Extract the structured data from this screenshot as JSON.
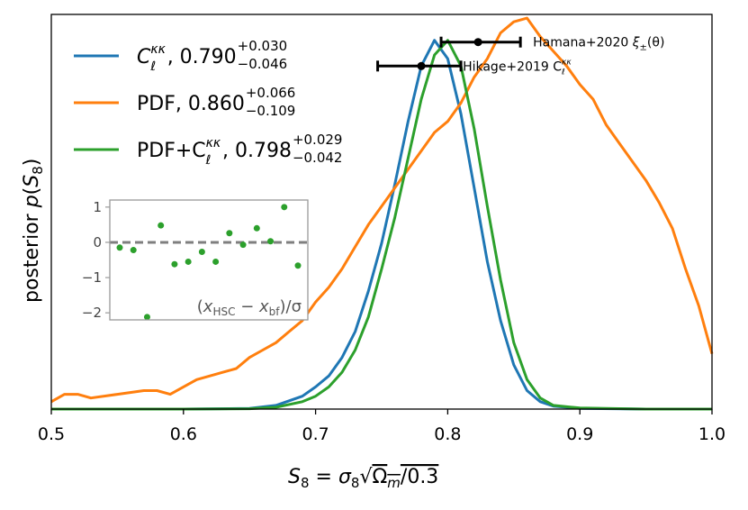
{
  "chart_data": {
    "type": "line",
    "title": "",
    "xlabel": "S_8 = σ_8 √(Ω_m/0.3)",
    "ylabel": "posterior p(S_8)",
    "xlim": [
      0.5,
      1.0
    ],
    "ylim": [
      0,
      1.07
    ],
    "xticks": [
      "0.5",
      "0.6",
      "0.7",
      "0.8",
      "0.9",
      "1.0"
    ],
    "legend_position": "upper-left",
    "series": [
      {
        "name": "Cₗ^κκ",
        "color": "#1f77b4",
        "legend": {
          "lead": "C",
          "sub": "ℓ",
          "sup": "κκ",
          "value": ", 0.790",
          "plus": "+0.030",
          "minus": "−0.046"
        },
        "x": [
          0.5,
          0.6,
          0.65,
          0.67,
          0.69,
          0.7,
          0.71,
          0.72,
          0.73,
          0.74,
          0.75,
          0.76,
          0.77,
          0.78,
          0.79,
          0.8,
          0.81,
          0.82,
          0.83,
          0.84,
          0.85,
          0.86,
          0.87,
          0.88,
          0.9,
          0.95,
          1.0
        ],
        "y": [
          0,
          0,
          0.002,
          0.01,
          0.035,
          0.06,
          0.09,
          0.14,
          0.21,
          0.32,
          0.45,
          0.61,
          0.78,
          0.93,
          1.0,
          0.95,
          0.8,
          0.6,
          0.4,
          0.24,
          0.12,
          0.05,
          0.02,
          0.008,
          0.002,
          0,
          0
        ]
      },
      {
        "name": "PDF",
        "color": "#ff7f0e",
        "legend": {
          "lead": "PDF",
          "value": ", 0.860",
          "plus": "+0.066",
          "minus": "−0.109"
        },
        "x": [
          0.5,
          0.51,
          0.52,
          0.53,
          0.55,
          0.57,
          0.58,
          0.59,
          0.6,
          0.61,
          0.62,
          0.63,
          0.64,
          0.65,
          0.66,
          0.67,
          0.68,
          0.69,
          0.7,
          0.71,
          0.72,
          0.73,
          0.74,
          0.75,
          0.76,
          0.77,
          0.78,
          0.79,
          0.8,
          0.81,
          0.82,
          0.83,
          0.84,
          0.85,
          0.86,
          0.87,
          0.88,
          0.89,
          0.9,
          0.91,
          0.92,
          0.93,
          0.94,
          0.95,
          0.96,
          0.97,
          0.98,
          0.99,
          1.0
        ],
        "y": [
          0.02,
          0.04,
          0.04,
          0.03,
          0.04,
          0.05,
          0.05,
          0.04,
          0.06,
          0.08,
          0.09,
          0.1,
          0.11,
          0.14,
          0.16,
          0.18,
          0.21,
          0.24,
          0.29,
          0.33,
          0.38,
          0.44,
          0.5,
          0.55,
          0.6,
          0.65,
          0.7,
          0.75,
          0.78,
          0.83,
          0.9,
          0.95,
          1.02,
          1.05,
          1.06,
          1.01,
          0.97,
          0.93,
          0.88,
          0.84,
          0.77,
          0.72,
          0.67,
          0.62,
          0.56,
          0.49,
          0.38,
          0.28,
          0.15
        ]
      },
      {
        "name": "PDF+Cₗ^κκ",
        "color": "#2ca02c",
        "legend": {
          "lead": "PDF+C",
          "sub": "ℓ",
          "sup": "κκ",
          "value": ", 0.798",
          "plus": "+0.029",
          "minus": "−0.042"
        },
        "x": [
          0.5,
          0.6,
          0.65,
          0.67,
          0.69,
          0.7,
          0.71,
          0.72,
          0.73,
          0.74,
          0.75,
          0.76,
          0.77,
          0.78,
          0.79,
          0.8,
          0.81,
          0.82,
          0.83,
          0.84,
          0.85,
          0.86,
          0.87,
          0.88,
          0.9,
          0.95,
          1.0
        ],
        "y": [
          0,
          0,
          0.001,
          0.005,
          0.02,
          0.035,
          0.06,
          0.1,
          0.16,
          0.25,
          0.38,
          0.52,
          0.68,
          0.84,
          0.96,
          1.0,
          0.93,
          0.76,
          0.55,
          0.35,
          0.18,
          0.08,
          0.03,
          0.01,
          0.003,
          0,
          0
        ]
      }
    ],
    "reference_points": [
      {
        "label": "Hamana+2020 ξ±(θ)",
        "text": "Hamana+2020 ",
        "symbol": "ξ",
        "sub": "±",
        "tail": "(θ)",
        "value": 0.823,
        "low": 0.795,
        "high": 0.855,
        "y_level": 0.995
      },
      {
        "label": "Hikage+2019 Cₗ^κκ",
        "text": "Hikage+2019 C",
        "sub": "ℓ",
        "sup": "κκ",
        "value": 0.78,
        "low": 0.747,
        "high": 0.81,
        "y_level": 0.93
      }
    ],
    "inset": {
      "ylabel_text": "(x_HSC − x_bf)/σ",
      "lab": {
        "open": "(",
        "x1": "x",
        "s1": "HSC",
        "minus": " − ",
        "x2": "x",
        "s2": "bf",
        "close": ")/σ"
      },
      "yticks": [
        "1",
        "0",
        "−1",
        "−2"
      ],
      "ylim": [
        -2.2,
        1.2
      ],
      "reference_line": 0,
      "points": [
        -0.15,
        -0.22,
        -2.12,
        0.48,
        -0.62,
        -0.55,
        -0.27,
        -0.55,
        0.26,
        -0.07,
        0.4,
        0.03,
        1.0,
        -0.66
      ],
      "color": "#2ca02c"
    }
  }
}
